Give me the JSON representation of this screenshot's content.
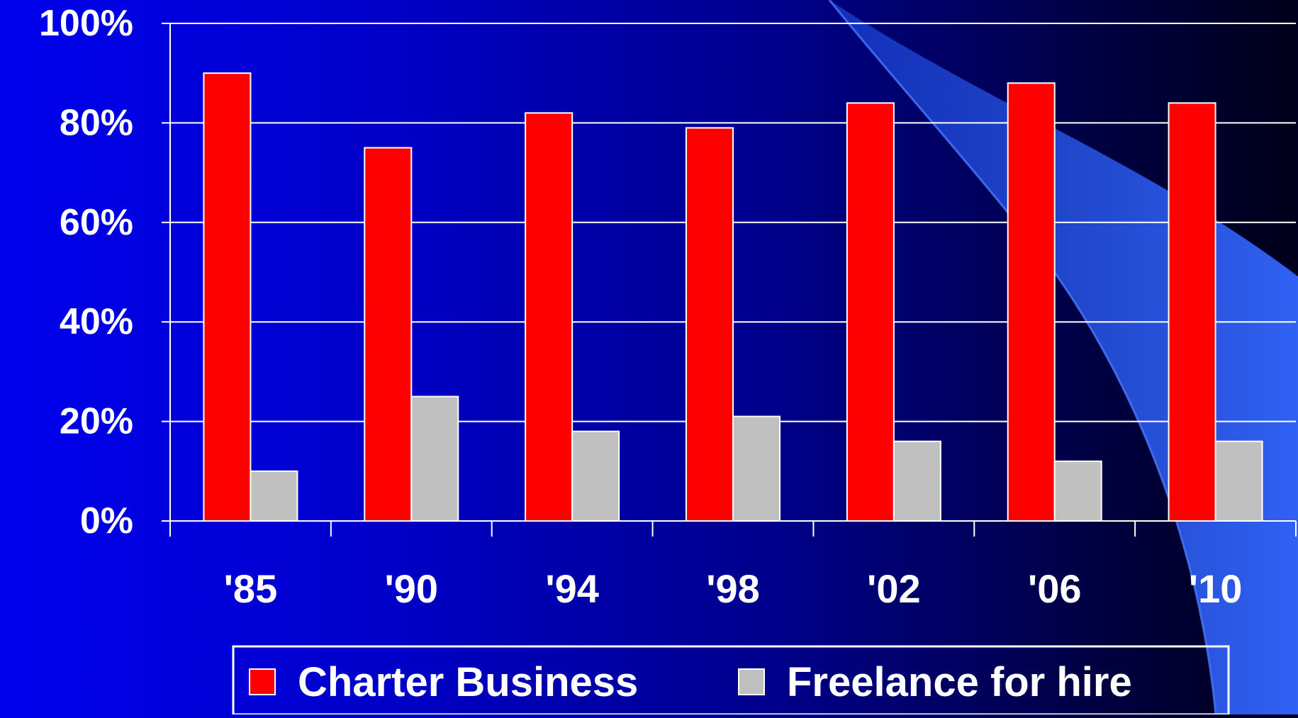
{
  "chart_data": {
    "type": "bar",
    "categories": [
      "'85",
      "'90",
      "'94",
      "'98",
      "'02",
      "'06",
      "'10"
    ],
    "series": [
      {
        "name": "Charter Business",
        "values": [
          90,
          75,
          82,
          79,
          84,
          88,
          84
        ],
        "color": "#ff0000"
      },
      {
        "name": "Freelance for hire",
        "values": [
          10,
          25,
          18,
          21,
          16,
          12,
          16
        ],
        "color": "#c0c0c0"
      }
    ],
    "yticks": [
      "0%",
      "20%",
      "40%",
      "60%",
      "80%",
      "100%"
    ],
    "ylim": [
      0,
      100
    ],
    "grid": true,
    "legend_position": "bottom"
  }
}
